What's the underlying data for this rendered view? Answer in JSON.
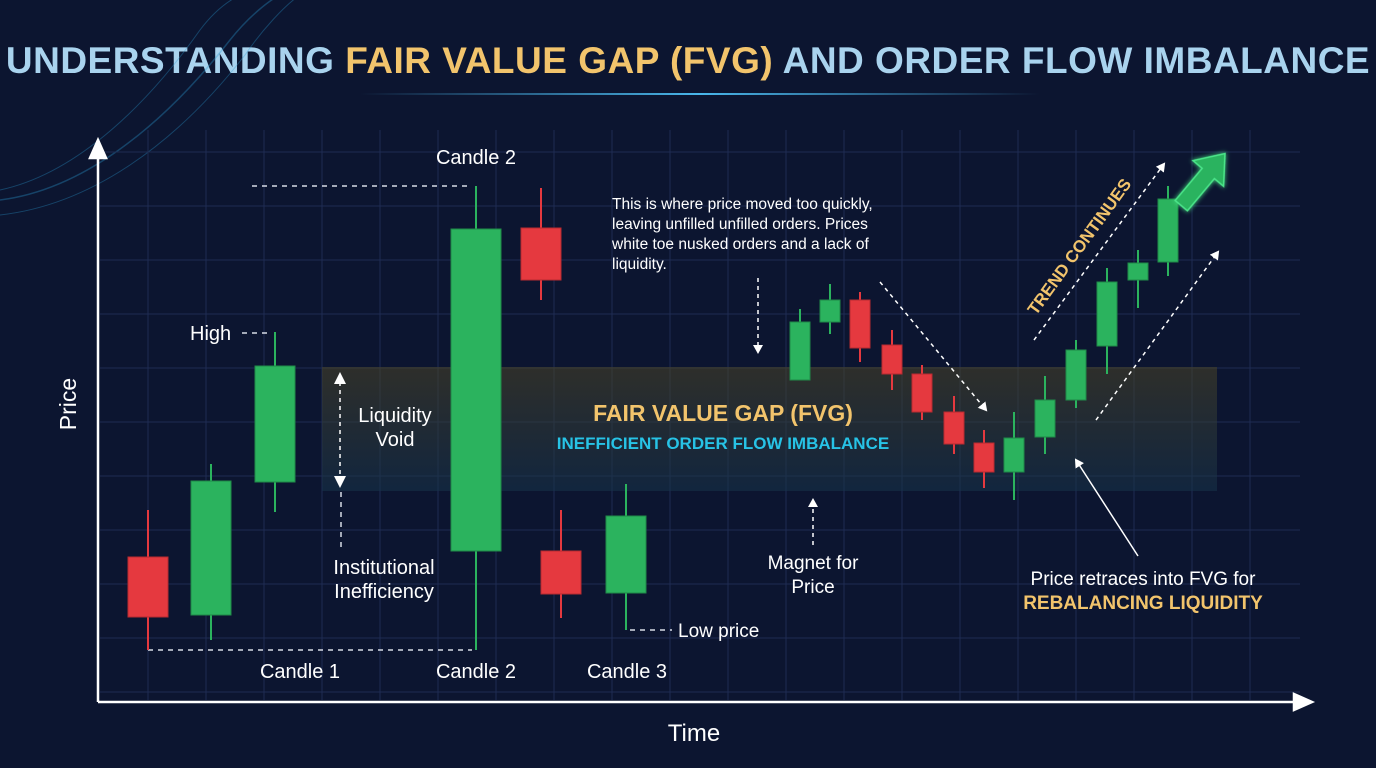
{
  "title": {
    "part_a": "UNDERSTANDING ",
    "part_b": "FAIR VALUE GAP (FVG)",
    "part_c": " AND ORDER FLOW IMBALANCE"
  },
  "axes": {
    "y_label": "Price",
    "x_label": "Time"
  },
  "labels": {
    "high": "High",
    "low_price": "Low price",
    "candle_2_top": "Candle 2",
    "candle_1": "Candle 1",
    "candle_2": "Candle 2",
    "candle_3": "Candle 3",
    "liquidity_void_1": "Liquidity",
    "liquidity_void_2": "Void",
    "institutional_1": "Institutional",
    "institutional_2": "Inefficiency",
    "note_lines": [
      "This is where price moved too quickly,",
      "leaving unfilled unfilled orders. Prices",
      "white toe nusked orders and a lack of",
      "liquidity."
    ],
    "magnet_1": "Magnet for",
    "magnet_2": "Price",
    "fvg_title": "FAIR VALUE GAP (FVG)",
    "fvg_subtitle": "INEFFICIENT ORDER FLOW IMBALANCE",
    "retrace_1": "Price retraces into FVG for",
    "retrace_2": "REBALANCING LIQUIDITY",
    "trend": "TREND CONTINUES"
  },
  "colors": {
    "background": "#0c1530",
    "bull": "#2bb35e",
    "bear": "#e5393f",
    "gold": "#f2c46c",
    "cyan": "#27c3e6",
    "title_blue": "#a9d3ee",
    "axis": "#ffffff"
  }
}
